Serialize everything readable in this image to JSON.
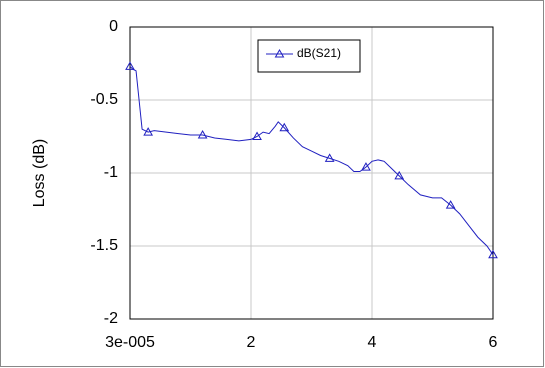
{
  "chart_data": {
    "type": "line",
    "ylabel": "Loss (dB)",
    "xlim": [
      3e-05,
      6
    ],
    "xticks": [
      {
        "value": 3e-05,
        "label": "3e-005"
      },
      2,
      4,
      6
    ],
    "ylim": [
      -2,
      0
    ],
    "yticks": [
      0,
      -0.5,
      -1,
      -1.5,
      -2
    ],
    "grid": true,
    "legend": "top",
    "series": [
      {
        "name": "dB(S21)",
        "color": "#2020c0",
        "x": [
          3e-05,
          0.05,
          0.1,
          0.15,
          0.2,
          0.3,
          0.4,
          0.6,
          0.8,
          1.0,
          1.2,
          1.4,
          1.6,
          1.8,
          2.0,
          2.1,
          2.2,
          2.3,
          2.4,
          2.45,
          2.55,
          2.7,
          2.85,
          3.0,
          3.15,
          3.3,
          3.45,
          3.6,
          3.7,
          3.8,
          3.9,
          4.0,
          4.1,
          4.2,
          4.3,
          4.45,
          4.6,
          4.8,
          5.0,
          5.15,
          5.3,
          5.45,
          5.6,
          5.75,
          5.9,
          6.0
        ],
        "values": [
          -0.27,
          -0.29,
          -0.3,
          -0.5,
          -0.7,
          -0.72,
          -0.71,
          -0.72,
          -0.73,
          -0.74,
          -0.74,
          -0.76,
          -0.77,
          -0.78,
          -0.77,
          -0.75,
          -0.72,
          -0.73,
          -0.68,
          -0.65,
          -0.69,
          -0.76,
          -0.82,
          -0.85,
          -0.88,
          -0.9,
          -0.92,
          -0.95,
          -0.99,
          -0.99,
          -0.96,
          -0.92,
          -0.91,
          -0.92,
          -0.96,
          -1.02,
          -1.08,
          -1.15,
          -1.17,
          -1.17,
          -1.22,
          -1.28,
          -1.36,
          -1.44,
          -1.5,
          -1.56
        ]
      }
    ]
  }
}
